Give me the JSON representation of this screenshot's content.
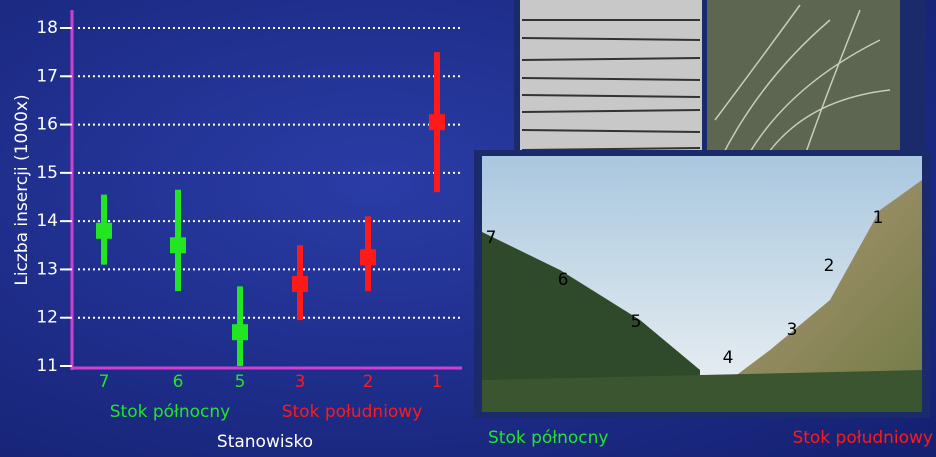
{
  "chart_data": {
    "type": "errorbar",
    "ylabel": "Liczba insercji (1000x)",
    "xlabel": "Stanowisko",
    "categories": [
      "7",
      "6",
      "5",
      "3",
      "2",
      "1"
    ],
    "values": [
      13.8,
      13.5,
      11.7,
      12.7,
      13.25,
      16.05
    ],
    "low": [
      13.1,
      12.55,
      11.0,
      11.95,
      12.55,
      14.6
    ],
    "high": [
      14.55,
      14.65,
      12.65,
      13.5,
      14.1,
      17.5
    ],
    "colors": [
      "#22e622",
      "#22e622",
      "#22e622",
      "#ff1a1a",
      "#ff1a1a",
      "#ff1a1a"
    ],
    "group_labels": [
      {
        "text": "Stok północny",
        "color": "#22e622"
      },
      {
        "text": "Stok południowy",
        "color": "#ff1a1a"
      }
    ],
    "ylim": [
      11,
      18
    ],
    "yticks": [
      11,
      12,
      13,
      14,
      15,
      16,
      17,
      18
    ],
    "grid": true
  },
  "photo": {
    "site_labels": [
      "7",
      "6",
      "5",
      "4",
      "3",
      "2",
      "1"
    ],
    "north_label": "Stok północny",
    "south_label": "Stok południowy"
  }
}
